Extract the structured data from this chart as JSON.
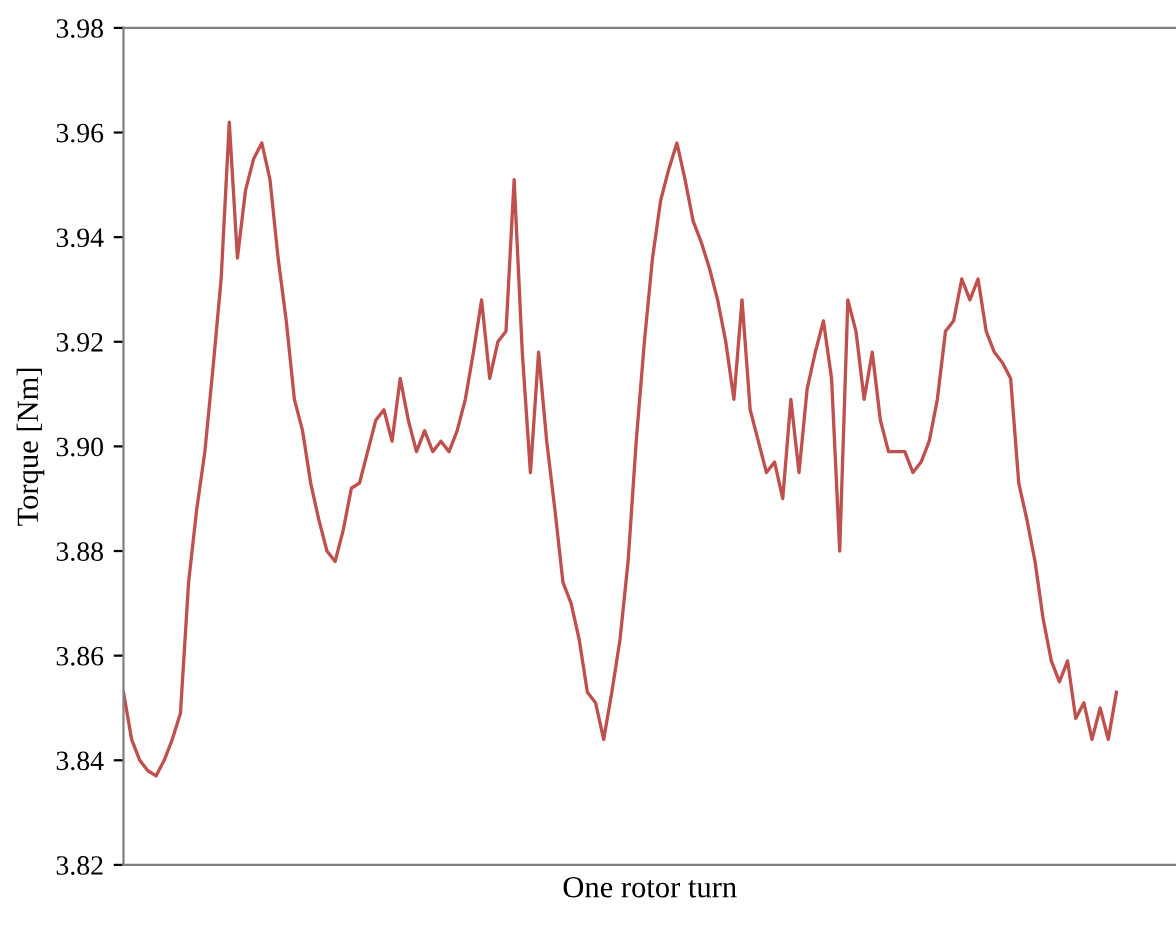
{
  "chart_data": {
    "type": "line",
    "xlabel": "One rotor turn",
    "ylabel": "Torque [Nm]",
    "categories": [
      null,
      null,
      null,
      null,
      null,
      null,
      null,
      null,
      null,
      null,
      null,
      null,
      null,
      null,
      null,
      null,
      null,
      null,
      null,
      null,
      null,
      null,
      null,
      null,
      null,
      null,
      null,
      null,
      null,
      null,
      null,
      null,
      null,
      null,
      null,
      null,
      null,
      null,
      null,
      null,
      null,
      null,
      null,
      null,
      null,
      null,
      null,
      null,
      null,
      null,
      null,
      null,
      null,
      null,
      null,
      null,
      null,
      null,
      null,
      null,
      null,
      null,
      null,
      null,
      null,
      null,
      null,
      null,
      null,
      null,
      null,
      null,
      null,
      null,
      null,
      null,
      null,
      null,
      null,
      null,
      null,
      null,
      null,
      null,
      null,
      null,
      null,
      null,
      null,
      null,
      null,
      null,
      null,
      null,
      null,
      null,
      null,
      null,
      null,
      null,
      null,
      null,
      null,
      null,
      null,
      null,
      null,
      null,
      null,
      null,
      null,
      null,
      null,
      null,
      null,
      null,
      null,
      null,
      null,
      null,
      null,
      null,
      null
    ],
    "series": [
      {
        "color": "#c0504d",
        "values": [
          3.853,
          3.844,
          3.84,
          3.838,
          3.837,
          3.84,
          3.844,
          3.849,
          3.874,
          3.888,
          3.899,
          3.915,
          3.932,
          3.962,
          3.936,
          3.949,
          3.955,
          3.958,
          3.951,
          3.936,
          3.924,
          3.909,
          3.903,
          3.893,
          3.886,
          3.88,
          3.878,
          3.884,
          3.892,
          3.893,
          3.899,
          3.905,
          3.907,
          3.901,
          3.913,
          3.905,
          3.899,
          3.903,
          3.899,
          3.901,
          3.899,
          3.903,
          3.909,
          3.918,
          3.928,
          3.913,
          3.92,
          3.922,
          3.951,
          3.918,
          3.895,
          3.918,
          3.901,
          3.888,
          3.874,
          3.87,
          3.863,
          3.853,
          3.851,
          3.844,
          3.853,
          3.863,
          3.878,
          3.901,
          3.92,
          3.936,
          3.947,
          3.953,
          3.958,
          3.951,
          3.943,
          3.939,
          3.934,
          3.928,
          3.92,
          3.909,
          3.928,
          3.907,
          3.901,
          3.895,
          3.897,
          3.89,
          3.909,
          3.895,
          3.911,
          3.918,
          3.924,
          3.913,
          3.88,
          3.928,
          3.922,
          3.909,
          3.918,
          3.905,
          3.899,
          3.899,
          3.899,
          3.895,
          3.897,
          3.901,
          3.909,
          3.922,
          3.924,
          3.932,
          3.928,
          3.932,
          3.922,
          3.918,
          3.916,
          3.913,
          3.893,
          3.886,
          3.878,
          3.867,
          3.859,
          3.855,
          3.859,
          3.848,
          3.851,
          3.844,
          3.85,
          3.844,
          3.853
        ]
      }
    ],
    "ylim": [
      3.82,
      3.98
    ],
    "yticks": [
      3.82,
      3.84,
      3.86,
      3.88,
      {
        "value": 3.9,
        "label": "3.90"
      },
      3.92,
      3.94,
      3.96,
      3.98
    ],
    "tick_labels": "y",
    "grid": false,
    "legend": false,
    "marker": "none",
    "line_style": "solid"
  }
}
